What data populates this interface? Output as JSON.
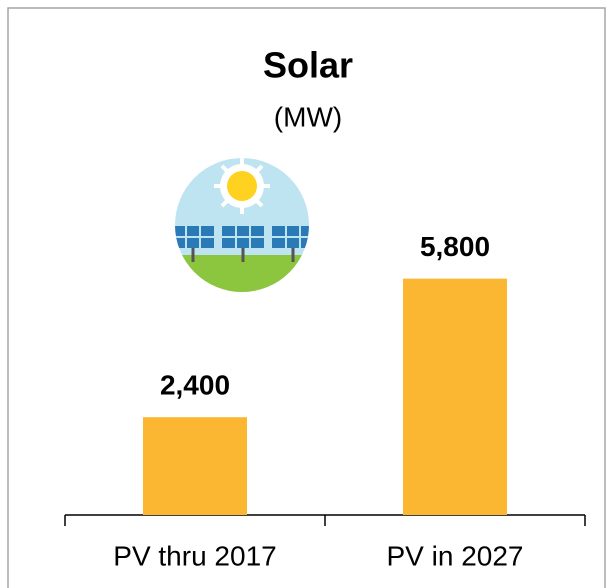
{
  "chart_data": {
    "type": "bar",
    "title": "Solar",
    "subtitle": "(MW)",
    "categories": [
      "PV thru 2017",
      "PV in 2027"
    ],
    "values": [
      2400,
      5800
    ],
    "value_labels": [
      "2,400",
      "5,800"
    ],
    "color": "#fbb632",
    "ylim": [
      0,
      8000
    ]
  }
}
